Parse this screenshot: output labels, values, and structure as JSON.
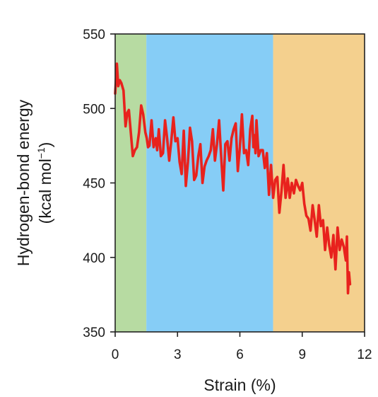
{
  "chart_data": {
    "type": "line",
    "title": "",
    "xlabel": "Strain (%)",
    "ylabel_main": "Hydrogen-bond energy",
    "ylabel_unit_pre": "(kcal mol",
    "ylabel_unit_sup": "−1",
    "ylabel_unit_post": ")",
    "xlim": [
      0,
      12
    ],
    "ylim": [
      350,
      550
    ],
    "x_ticks": [
      0,
      3,
      6,
      9,
      12
    ],
    "y_ticks": [
      350,
      400,
      450,
      500,
      550
    ],
    "x_tick_labels": [
      "0",
      "3",
      "6",
      "9",
      "12"
    ],
    "y_tick_labels": [
      "350",
      "400",
      "450",
      "500",
      "550"
    ],
    "grid": false,
    "regions": [
      {
        "x_start": 0,
        "x_end": 1.5,
        "color": "#b7dba2"
      },
      {
        "x_start": 1.5,
        "x_end": 7.6,
        "color": "#86cdf6"
      },
      {
        "x_start": 7.6,
        "x_end": 12,
        "color": "#f4d08e"
      }
    ],
    "series": [
      {
        "color": "#e8221d",
        "x": [
          0.0,
          0.08,
          0.15,
          0.22,
          0.3,
          0.4,
          0.5,
          0.58,
          0.66,
          0.75,
          0.85,
          0.95,
          1.05,
          1.15,
          1.25,
          1.35,
          1.45,
          1.52,
          1.58,
          1.65,
          1.75,
          1.85,
          1.95,
          2.02,
          2.1,
          2.2,
          2.3,
          2.4,
          2.5,
          2.6,
          2.7,
          2.8,
          2.9,
          3.0,
          3.1,
          3.2,
          3.3,
          3.4,
          3.5,
          3.6,
          3.7,
          3.8,
          3.9,
          4.0,
          4.1,
          4.2,
          4.3,
          4.4,
          4.5,
          4.6,
          4.7,
          4.8,
          4.9,
          5.0,
          5.1,
          5.2,
          5.3,
          5.4,
          5.5,
          5.6,
          5.7,
          5.8,
          5.9,
          6.0,
          6.1,
          6.2,
          6.3,
          6.4,
          6.5,
          6.6,
          6.65,
          6.7,
          6.75,
          6.8,
          6.9,
          7.0,
          7.1,
          7.2,
          7.3,
          7.4,
          7.5,
          7.6,
          7.7,
          7.8,
          7.9,
          8.0,
          8.1,
          8.2,
          8.3,
          8.4,
          8.5,
          8.6,
          8.7,
          8.8,
          8.9,
          9.0,
          9.1,
          9.2,
          9.3,
          9.4,
          9.5,
          9.6,
          9.7,
          9.8,
          9.9,
          10.0,
          10.1,
          10.2,
          10.3,
          10.4,
          10.5,
          10.6,
          10.7,
          10.8,
          10.9,
          11.0,
          11.1,
          11.15,
          11.2,
          11.25,
          11.3
        ],
        "values": [
          510,
          530,
          515,
          519,
          517,
          512,
          488,
          497,
          499,
          484,
          468,
          472,
          474,
          484,
          502,
          496,
          484,
          480,
          474,
          475,
          492,
          474,
          480,
          472,
          486,
          468,
          470,
          492,
          480,
          465,
          478,
          494,
          478,
          480,
          464,
          456,
          485,
          448,
          464,
          487,
          478,
          452,
          455,
          468,
          476,
          450,
          461,
          465,
          468,
          472,
          486,
          465,
          476,
          492,
          468,
          445,
          476,
          478,
          465,
          480,
          486,
          490,
          458,
          474,
          496,
          470,
          472,
          462,
          486,
          495,
          474,
          482,
          470,
          492,
          468,
          472,
          472,
          460,
          470,
          442,
          462,
          440,
          452,
          454,
          430,
          444,
          462,
          440,
          453,
          440,
          450,
          443,
          452,
          448,
          445,
          450,
          436,
          428,
          426,
          418,
          435,
          425,
          414,
          435,
          421,
          425,
          405,
          420,
          408,
          400,
          415,
          392,
          420,
          405,
          412,
          407,
          398,
          414,
          376,
          390,
          382
        ]
      }
    ]
  }
}
